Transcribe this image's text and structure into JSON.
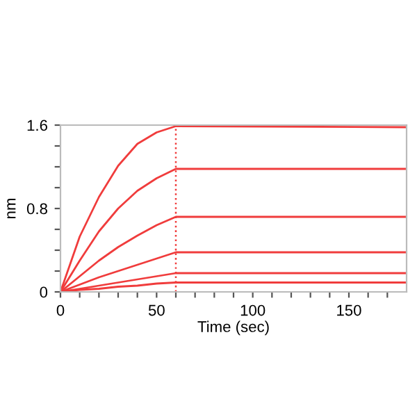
{
  "chart_data": {
    "type": "line",
    "xlabel": "Time (sec)",
    "ylabel": "nm",
    "x": [
      0,
      10,
      20,
      30,
      40,
      50,
      60,
      180
    ],
    "series": [
      {
        "color": "#f03c3c",
        "values": [
          0,
          0.53,
          0.91,
          1.21,
          1.42,
          1.53,
          1.59,
          1.58
        ]
      },
      {
        "color": "#f03c3c",
        "values": [
          0,
          0.3,
          0.58,
          0.8,
          0.97,
          1.09,
          1.18,
          1.18
        ]
      },
      {
        "color": "#f03c3c",
        "values": [
          0,
          0.15,
          0.3,
          0.43,
          0.54,
          0.64,
          0.72,
          0.72
        ]
      },
      {
        "color": "#f03c3c",
        "values": [
          0,
          0.07,
          0.14,
          0.2,
          0.26,
          0.32,
          0.38,
          0.38
        ]
      },
      {
        "color": "#f03c3c",
        "values": [
          0,
          0.03,
          0.06,
          0.09,
          0.12,
          0.15,
          0.18,
          0.18
        ]
      },
      {
        "color": "#f03c3c",
        "values": [
          0,
          0.02,
          0.03,
          0.05,
          0.06,
          0.08,
          0.09,
          0.09
        ]
      }
    ],
    "xlim": [
      0,
      180
    ],
    "ylim": [
      0,
      1.6
    ],
    "xticks": [
      0,
      {
        "value": 10,
        "label": null
      },
      {
        "value": 20,
        "label": null
      },
      {
        "value": 30,
        "label": null
      },
      {
        "value": 40,
        "label": null
      },
      50,
      {
        "value": 60,
        "label": null
      },
      {
        "value": 70,
        "label": null
      },
      {
        "value": 80,
        "label": null
      },
      {
        "value": 90,
        "label": null
      },
      100,
      {
        "value": 110,
        "label": null
      },
      {
        "value": 120,
        "label": null
      },
      {
        "value": 130,
        "label": null
      },
      {
        "value": 140,
        "label": null
      },
      150,
      {
        "value": 160,
        "label": null
      },
      {
        "value": 170,
        "label": null
      }
    ],
    "yticks": [
      0,
      {
        "value": 0.2,
        "label": null
      },
      {
        "value": 0.4,
        "label": null
      },
      {
        "value": 0.6,
        "label": null
      },
      0.8,
      {
        "value": 1.0,
        "label": null
      },
      {
        "value": 1.2,
        "label": null
      },
      {
        "value": 1.4,
        "label": null
      },
      1.6
    ],
    "ref_lines": [
      {
        "axis": "x",
        "value": 60,
        "color": "#f03c3c",
        "line_style": "dotted"
      }
    ],
    "grid": false,
    "legend": false
  }
}
